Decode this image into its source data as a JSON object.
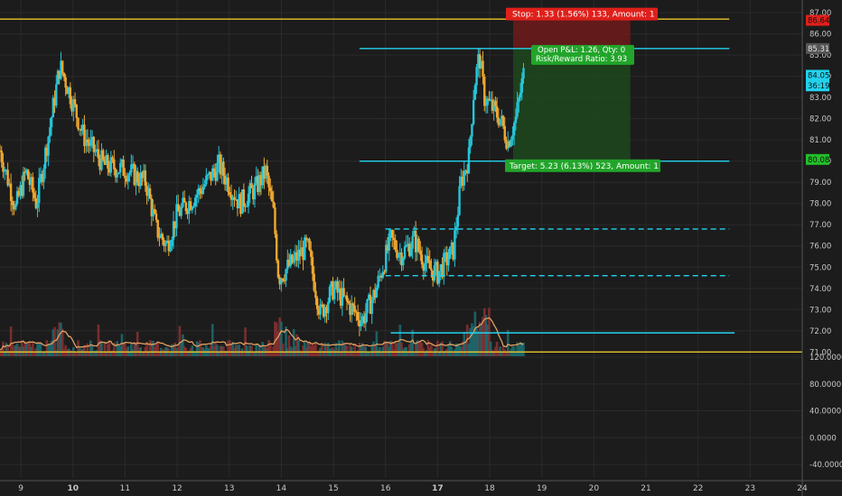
{
  "chart_data": {
    "type": "candlestick",
    "price_axis": {
      "ticks": [
        "87.00",
        "86.00",
        "85.00",
        "84.00",
        "83.00",
        "82.00",
        "81.00",
        "80.00",
        "79.00",
        "78.00",
        "77.00",
        "76.00",
        "75.00",
        "74.00",
        "73.00",
        "72.00",
        "71.00"
      ],
      "range": [
        70.8,
        87.6
      ]
    },
    "indicator_axis": {
      "ticks": [
        "120.0000",
        "80.0000",
        "40.0000",
        "0.0000",
        "-40.0000"
      ],
      "range": [
        -60,
        120
      ]
    },
    "time_axis": {
      "ticks": [
        "9",
        "10",
        "11",
        "12",
        "13",
        "14",
        "15",
        "16",
        "17",
        "18",
        "19",
        "20",
        "21",
        "22",
        "23",
        "24"
      ],
      "bold_ticks": [
        "10",
        "17"
      ],
      "range": [
        8.6,
        24.0
      ]
    },
    "price_labels": [
      {
        "name": "stop-price-label",
        "value": 86.64,
        "text": "86.64",
        "color": "#e0201b"
      },
      {
        "name": "open-price-label",
        "value": 85.31,
        "text": "85.31",
        "color": "#555555"
      },
      {
        "name": "last-price-label",
        "value": 84.05,
        "text": "84.05",
        "color": "#22d3ee"
      },
      {
        "name": "countdown-label",
        "value": 83.55,
        "text": "36:19",
        "color": "#22d3ee"
      },
      {
        "name": "target-price-label",
        "value": 80.08,
        "text": "80.08",
        "color": "#22c02a"
      }
    ],
    "position": {
      "stop_text": "Stop: 1.33 (1.56%) 133, Amount: 1",
      "pnl_text": "Open P&L: 1.26, Qty: 0",
      "rr_text": "Risk/Reward Ratio: 3.93",
      "target_text": "Target: 5.23 (6.13%) 523, Amount: 1",
      "entry": 85.31,
      "stop": 86.64,
      "target": 80.08,
      "x_start": 18.45,
      "x_end": 20.7
    },
    "horizontal_lines": [
      {
        "value": 86.7,
        "x_from": 8.6,
        "x_to": 22.6,
        "style": "solid",
        "color": "#e8c42a"
      },
      {
        "value": 85.31,
        "x_from": 15.5,
        "x_to": 22.6,
        "style": "solid",
        "color": "#22d3ee"
      },
      {
        "value": 80.0,
        "x_from": 15.5,
        "x_to": 22.6,
        "style": "solid",
        "color": "#22d3ee"
      },
      {
        "value": 76.8,
        "x_from": 16.0,
        "x_to": 22.6,
        "style": "dashed",
        "color": "#22d3ee"
      },
      {
        "value": 74.6,
        "x_from": 16.0,
        "x_to": 22.6,
        "style": "dashed",
        "color": "#22d3ee"
      },
      {
        "value": 71.9,
        "x_from": 16.1,
        "x_to": 22.7,
        "style": "solid",
        "color": "#22d3ee"
      },
      {
        "value": 71.0,
        "x_from": 8.6,
        "x_to": 24.0,
        "style": "solid",
        "color": "#e8c42a"
      }
    ],
    "series": [
      {
        "name": "",
        "key_closes": [
          {
            "x": 8.6,
            "v": 80.5
          },
          {
            "x": 8.9,
            "v": 77.8
          },
          {
            "x": 9.1,
            "v": 79.5
          },
          {
            "x": 9.3,
            "v": 78.0
          },
          {
            "x": 9.55,
            "v": 81.5
          },
          {
            "x": 9.75,
            "v": 84.5
          },
          {
            "x": 9.9,
            "v": 83.5
          },
          {
            "x": 10.2,
            "v": 81.2
          },
          {
            "x": 10.6,
            "v": 79.8
          },
          {
            "x": 11.0,
            "v": 79.6
          },
          {
            "x": 11.4,
            "v": 79.0
          },
          {
            "x": 11.6,
            "v": 76.8
          },
          {
            "x": 11.8,
            "v": 76.0
          },
          {
            "x": 12.0,
            "v": 77.5
          },
          {
            "x": 12.4,
            "v": 78.5
          },
          {
            "x": 12.8,
            "v": 79.8
          },
          {
            "x": 13.2,
            "v": 78.0
          },
          {
            "x": 13.5,
            "v": 78.7
          },
          {
            "x": 13.7,
            "v": 79.5
          },
          {
            "x": 13.85,
            "v": 77.5
          },
          {
            "x": 13.95,
            "v": 74.5
          },
          {
            "x": 14.2,
            "v": 75.2
          },
          {
            "x": 14.5,
            "v": 76.0
          },
          {
            "x": 14.75,
            "v": 72.8
          },
          {
            "x": 15.0,
            "v": 74.0
          },
          {
            "x": 15.3,
            "v": 73.2
          },
          {
            "x": 15.55,
            "v": 72.5
          },
          {
            "x": 15.8,
            "v": 73.8
          },
          {
            "x": 16.1,
            "v": 76.3
          },
          {
            "x": 16.3,
            "v": 75.6
          },
          {
            "x": 16.55,
            "v": 76.3
          },
          {
            "x": 16.8,
            "v": 75.0
          },
          {
            "x": 17.0,
            "v": 74.7
          },
          {
            "x": 17.3,
            "v": 75.8
          },
          {
            "x": 17.45,
            "v": 79.0
          },
          {
            "x": 17.6,
            "v": 80.2
          },
          {
            "x": 17.7,
            "v": 83.5
          },
          {
            "x": 17.8,
            "v": 85.0
          },
          {
            "x": 17.9,
            "v": 83.0
          },
          {
            "x": 18.05,
            "v": 82.5
          },
          {
            "x": 18.2,
            "v": 82.0
          },
          {
            "x": 18.35,
            "v": 80.9
          },
          {
            "x": 18.5,
            "v": 82.0
          },
          {
            "x": 18.65,
            "v": 84.1
          }
        ]
      }
    ],
    "volume_ma_color": "#e0a060",
    "candle_up_color": "#26c6da",
    "candle_down_color": "#f0a830"
  }
}
